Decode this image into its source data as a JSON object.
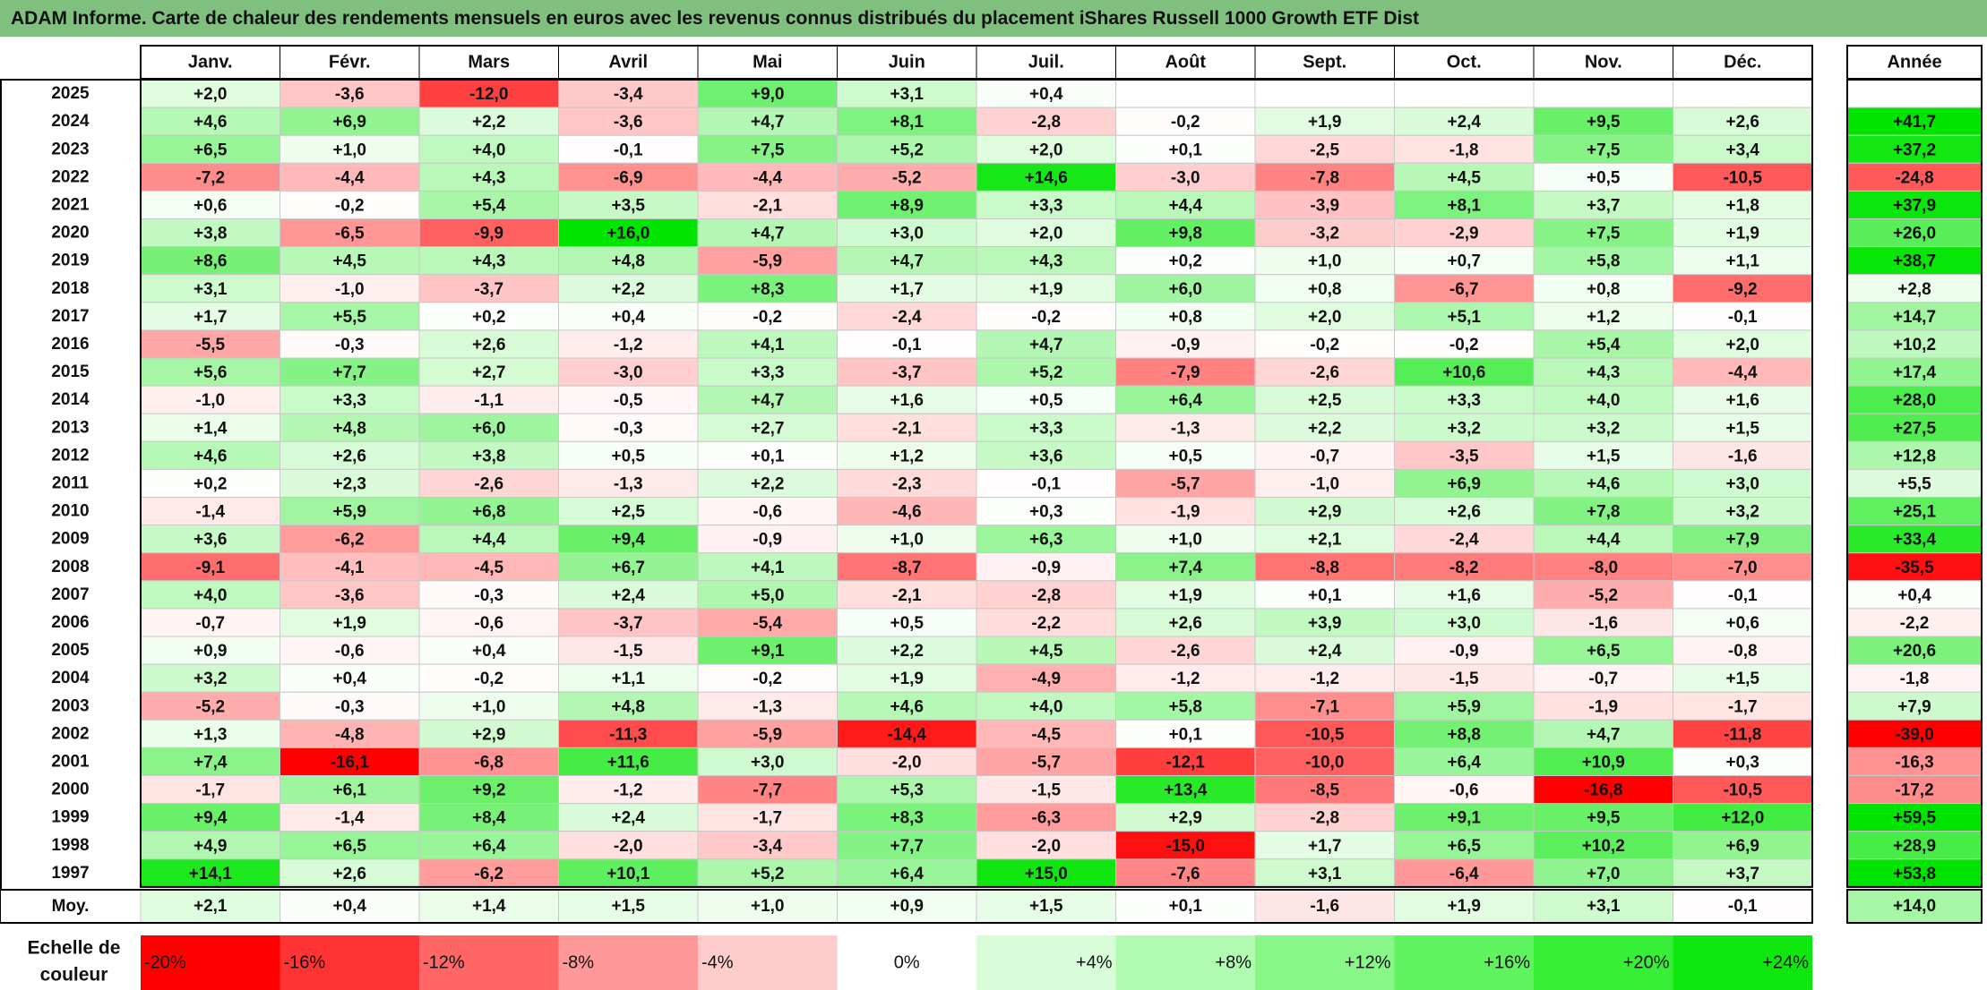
{
  "title": "ADAM Informe. Carte de chaleur des rendements mensuels en euros avec les revenus connus distribués du placement iShares Russell 1000 Growth ETF Dist",
  "chart_data": {
    "type": "heatmap",
    "months": [
      "Janv.",
      "Févr.",
      "Mars",
      "Avril",
      "Mai",
      "Juin",
      "Juil.",
      "Août",
      "Sept.",
      "Oct.",
      "Nov.",
      "Déc."
    ],
    "year_header": "Année",
    "rows": [
      {
        "year": "2025",
        "values": [
          "+2,0",
          "-3,6",
          "-12,0",
          "-3,4",
          "+9,0",
          "+3,1",
          "+0,4",
          "",
          "",
          "",
          "",
          ""
        ],
        "annual": ""
      },
      {
        "year": "2024",
        "values": [
          "+4,6",
          "+6,9",
          "+2,2",
          "-3,6",
          "+4,7",
          "+8,1",
          "-2,8",
          "-0,2",
          "+1,9",
          "+2,4",
          "+9,5",
          "+2,6"
        ],
        "annual": "+41,7"
      },
      {
        "year": "2023",
        "values": [
          "+6,5",
          "+1,0",
          "+4,0",
          "-0,1",
          "+7,5",
          "+5,2",
          "+2,0",
          "+0,1",
          "-2,5",
          "-1,8",
          "+7,5",
          "+3,4"
        ],
        "annual": "+37,2"
      },
      {
        "year": "2022",
        "values": [
          "-7,2",
          "-4,4",
          "+4,3",
          "-6,9",
          "-4,4",
          "-5,2",
          "+14,6",
          "-3,0",
          "-7,8",
          "+4,5",
          "+0,5",
          "-10,5"
        ],
        "annual": "-24,8"
      },
      {
        "year": "2021",
        "values": [
          "+0,6",
          "-0,2",
          "+5,4",
          "+3,5",
          "-2,1",
          "+8,9",
          "+3,3",
          "+4,4",
          "-3,9",
          "+8,1",
          "+3,7",
          "+1,8"
        ],
        "annual": "+37,9"
      },
      {
        "year": "2020",
        "values": [
          "+3,8",
          "-6,5",
          "-9,9",
          "+16,0",
          "+4,7",
          "+3,0",
          "+2,0",
          "+9,8",
          "-3,2",
          "-2,9",
          "+7,5",
          "+1,9"
        ],
        "annual": "+26,0"
      },
      {
        "year": "2019",
        "values": [
          "+8,6",
          "+4,5",
          "+4,3",
          "+4,8",
          "-5,9",
          "+4,7",
          "+4,3",
          "+0,2",
          "+1,0",
          "+0,7",
          "+5,8",
          "+1,1"
        ],
        "annual": "+38,7"
      },
      {
        "year": "2018",
        "values": [
          "+3,1",
          "-1,0",
          "-3,7",
          "+2,2",
          "+8,3",
          "+1,7",
          "+1,9",
          "+6,0",
          "+0,8",
          "-6,7",
          "+0,8",
          "-9,2"
        ],
        "annual": "+2,8"
      },
      {
        "year": "2017",
        "values": [
          "+1,7",
          "+5,5",
          "+0,2",
          "+0,4",
          "-0,2",
          "-2,4",
          "-0,2",
          "+0,8",
          "+2,0",
          "+5,1",
          "+1,2",
          "-0,1"
        ],
        "annual": "+14,7"
      },
      {
        "year": "2016",
        "values": [
          "-5,5",
          "-0,3",
          "+2,6",
          "-1,2",
          "+4,1",
          "-0,1",
          "+4,7",
          "-0,9",
          "-0,2",
          "-0,2",
          "+5,4",
          "+2,0"
        ],
        "annual": "+10,2"
      },
      {
        "year": "2015",
        "values": [
          "+5,6",
          "+7,7",
          "+2,7",
          "-3,0",
          "+3,3",
          "-3,7",
          "+5,2",
          "-7,9",
          "-2,6",
          "+10,6",
          "+4,3",
          "-4,4"
        ],
        "annual": "+17,4"
      },
      {
        "year": "2014",
        "values": [
          "-1,0",
          "+3,3",
          "-1,1",
          "-0,5",
          "+4,7",
          "+1,6",
          "+0,5",
          "+6,4",
          "+2,5",
          "+3,3",
          "+4,0",
          "+1,6"
        ],
        "annual": "+28,0"
      },
      {
        "year": "2013",
        "values": [
          "+1,4",
          "+4,8",
          "+6,0",
          "-0,3",
          "+2,7",
          "-2,1",
          "+3,3",
          "-1,3",
          "+2,2",
          "+3,2",
          "+3,2",
          "+1,5"
        ],
        "annual": "+27,5"
      },
      {
        "year": "2012",
        "values": [
          "+4,6",
          "+2,6",
          "+3,8",
          "+0,5",
          "+0,1",
          "+1,2",
          "+3,6",
          "+0,5",
          "-0,7",
          "-3,5",
          "+1,5",
          "-1,6"
        ],
        "annual": "+12,8"
      },
      {
        "year": "2011",
        "values": [
          "+0,2",
          "+2,3",
          "-2,6",
          "-1,3",
          "+2,2",
          "-2,3",
          "-0,1",
          "-5,7",
          "-1,0",
          "+6,9",
          "+4,6",
          "+3,0"
        ],
        "annual": "+5,5"
      },
      {
        "year": "2010",
        "values": [
          "-1,4",
          "+5,9",
          "+6,8",
          "+2,5",
          "-0,6",
          "-4,6",
          "+0,3",
          "-1,9",
          "+2,9",
          "+2,6",
          "+7,8",
          "+3,2"
        ],
        "annual": "+25,1"
      },
      {
        "year": "2009",
        "values": [
          "+3,6",
          "-6,2",
          "+4,4",
          "+9,4",
          "-0,9",
          "+1,0",
          "+6,3",
          "+1,0",
          "+2,1",
          "-2,4",
          "+4,4",
          "+7,9"
        ],
        "annual": "+33,4"
      },
      {
        "year": "2008",
        "values": [
          "-9,1",
          "-4,1",
          "-4,5",
          "+6,7",
          "+4,1",
          "-8,7",
          "-0,9",
          "+7,4",
          "-8,8",
          "-8,2",
          "-8,0",
          "-7,0"
        ],
        "annual": "-35,5"
      },
      {
        "year": "2007",
        "values": [
          "+4,0",
          "-3,6",
          "-0,3",
          "+2,4",
          "+5,0",
          "-2,1",
          "-2,8",
          "+1,9",
          "+0,1",
          "+1,6",
          "-5,2",
          "-0,1"
        ],
        "annual": "+0,4"
      },
      {
        "year": "2006",
        "values": [
          "-0,7",
          "+1,9",
          "-0,6",
          "-3,7",
          "-5,4",
          "+0,5",
          "-2,2",
          "+2,6",
          "+3,9",
          "+3,0",
          "-1,6",
          "+0,6"
        ],
        "annual": "-2,2"
      },
      {
        "year": "2005",
        "values": [
          "+0,9",
          "-0,6",
          "+0,4",
          "-1,5",
          "+9,1",
          "+2,2",
          "+4,5",
          "-2,6",
          "+2,4",
          "-0,9",
          "+6,5",
          "-0,8"
        ],
        "annual": "+20,6"
      },
      {
        "year": "2004",
        "values": [
          "+3,2",
          "+0,4",
          "-0,2",
          "+1,1",
          "-0,2",
          "+1,9",
          "-4,9",
          "-1,2",
          "-1,2",
          "-1,5",
          "-0,7",
          "+1,5"
        ],
        "annual": "-1,8"
      },
      {
        "year": "2003",
        "values": [
          "-5,2",
          "-0,3",
          "+1,0",
          "+4,8",
          "-1,3",
          "+4,6",
          "+4,0",
          "+5,8",
          "-7,1",
          "+5,9",
          "-1,9",
          "-1,7"
        ],
        "annual": "+7,9"
      },
      {
        "year": "2002",
        "values": [
          "+1,3",
          "-4,8",
          "+2,9",
          "-11,3",
          "-5,9",
          "-14,4",
          "-4,5",
          "+0,1",
          "-10,5",
          "+8,8",
          "+4,7",
          "-11,8"
        ],
        "annual": "-39,0"
      },
      {
        "year": "2001",
        "values": [
          "+7,4",
          "-16,1",
          "-6,8",
          "+11,6",
          "+3,0",
          "-2,0",
          "-5,7",
          "-12,1",
          "-10,0",
          "+6,4",
          "+10,9",
          "+0,3"
        ],
        "annual": "-16,3"
      },
      {
        "year": "2000",
        "values": [
          "-1,7",
          "+6,1",
          "+9,2",
          "-1,2",
          "-7,7",
          "+5,3",
          "-1,5",
          "+13,4",
          "-8,5",
          "-0,6",
          "-16,8",
          "-10,5"
        ],
        "annual": "-17,2"
      },
      {
        "year": "1999",
        "values": [
          "+9,4",
          "-1,4",
          "+8,4",
          "+2,4",
          "-1,7",
          "+8,3",
          "-6,3",
          "+2,9",
          "-2,8",
          "+9,1",
          "+9,5",
          "+12,0"
        ],
        "annual": "+59,5"
      },
      {
        "year": "1998",
        "values": [
          "+4,9",
          "+6,5",
          "+6,4",
          "-2,0",
          "-3,4",
          "+7,7",
          "-2,0",
          "-15,0",
          "+1,7",
          "+6,5",
          "+10,2",
          "+6,9"
        ],
        "annual": "+28,9"
      },
      {
        "year": "1997",
        "values": [
          "+14,1",
          "+2,6",
          "-6,2",
          "+10,1",
          "+5,2",
          "+6,4",
          "+15,0",
          "-7,6",
          "+3,1",
          "-6,4",
          "+7,0",
          "+3,7"
        ],
        "annual": "+53,8"
      }
    ],
    "average": {
      "label": "Moy.",
      "values": [
        "+2,1",
        "+0,4",
        "+1,4",
        "+1,5",
        "+1,0",
        "+0,9",
        "+1,5",
        "+0,1",
        "-1,6",
        "+1,9",
        "+3,1",
        "-0,1"
      ],
      "annual": "+14,0"
    },
    "scale": {
      "label_line1": "Echelle de",
      "label_line2": "couleur",
      "items": [
        {
          "label": "-20%",
          "value": -20,
          "color": "#ff0000"
        },
        {
          "label": "-16%",
          "value": -16,
          "color": "#ff3333"
        },
        {
          "label": "-12%",
          "value": -12,
          "color": "#ff6666"
        },
        {
          "label": "-8%",
          "value": -8,
          "color": "#ff9999"
        },
        {
          "label": "-4%",
          "value": -4,
          "color": "#ffcccc"
        },
        {
          "label": "0%",
          "value": 0,
          "color": "#ffffff"
        },
        {
          "label": "+4%",
          "value": 4,
          "color": "#d9fcd9"
        },
        {
          "label": "+8%",
          "value": 8,
          "color": "#b0fbb0"
        },
        {
          "label": "+12%",
          "value": 12,
          "color": "#88f788"
        },
        {
          "label": "+16%",
          "value": 16,
          "color": "#5ff35f"
        },
        {
          "label": "+20%",
          "value": 20,
          "color": "#36ef36"
        },
        {
          "label": "+24%",
          "value": 24,
          "color": "#0ee80e"
        }
      ]
    },
    "colors": {
      "negative_max": "#ff0000",
      "zero": "#ffffff",
      "positive_max": "#00e500",
      "title_bar": "#7fc07f"
    }
  }
}
